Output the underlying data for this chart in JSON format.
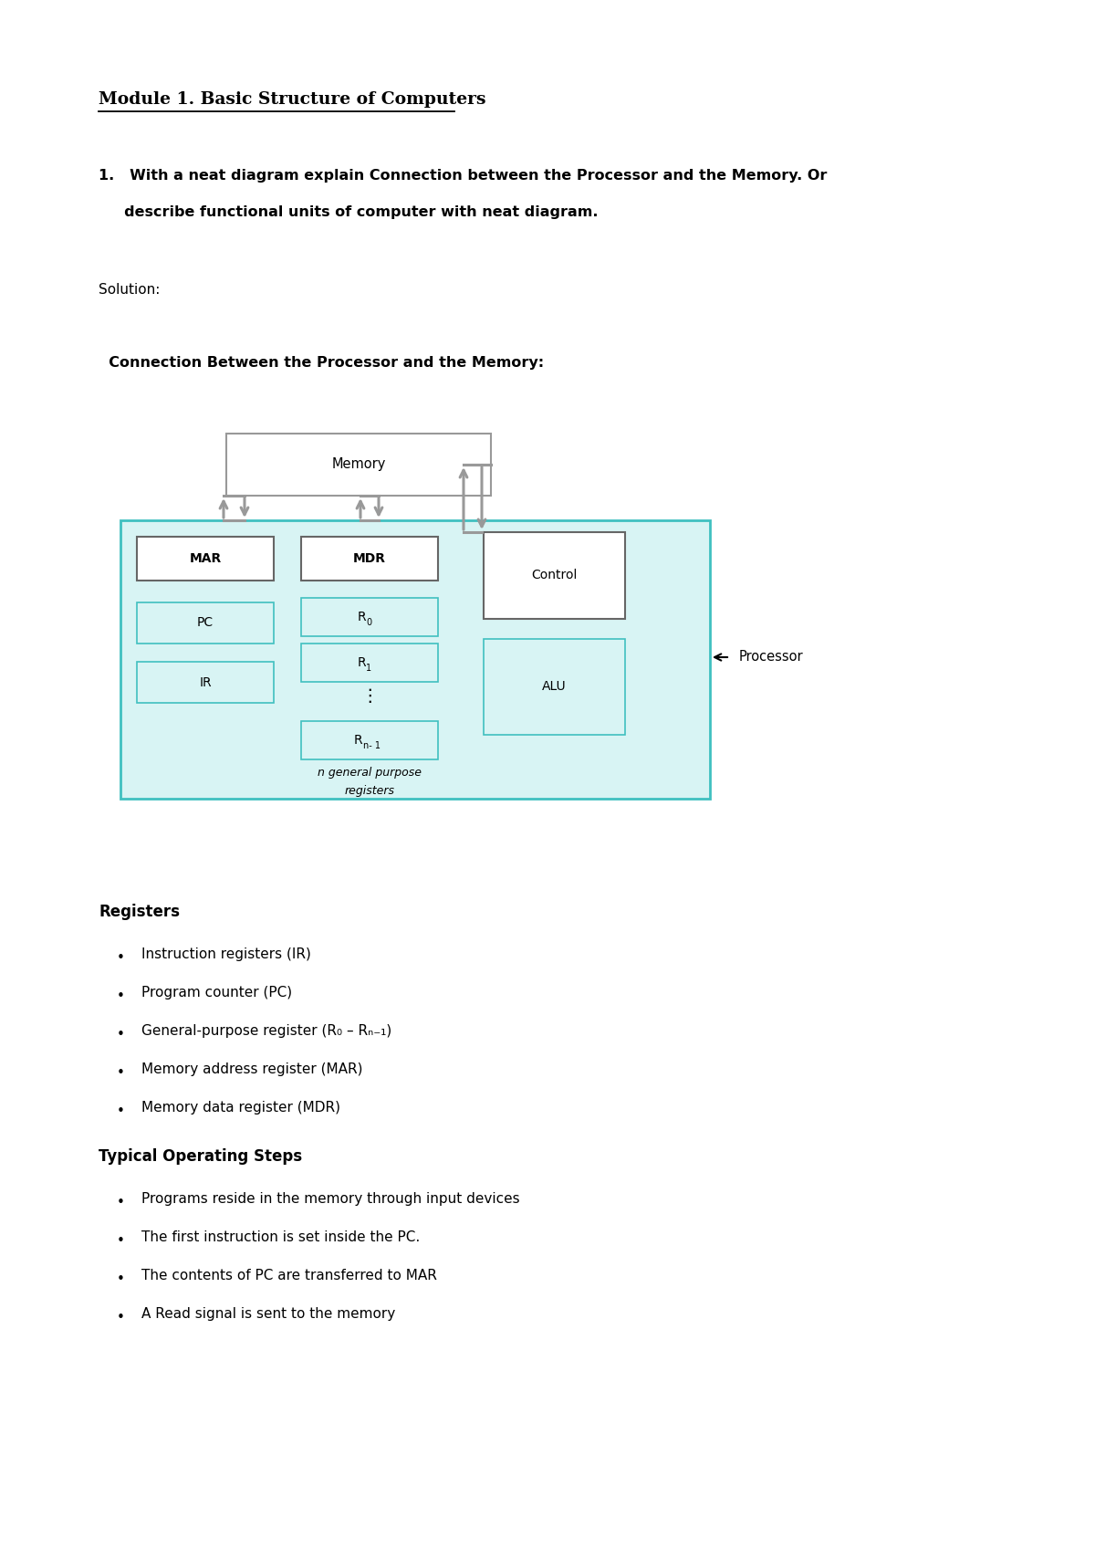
{
  "title": "Module 1. Basic Structure of Computers ",
  "q_line1": "1.   With a neat diagram explain Connection between the Processor and the Memory. Or",
  "q_line2": "     describe functional units of computer with neat diagram.",
  "solution_label": "Solution:",
  "diagram_title": "  Connection Between the Processor and the Memory:",
  "registers_title": "Registers",
  "registers_items": [
    "Instruction registers (IR)",
    "Program counter (PC)",
    "General-purpose register (R₀ – Rₙ₋₁)",
    "Memory address register (MAR)",
    "Memory data register (MDR)"
  ],
  "typical_title": "Typical Operating Steps",
  "typical_items": [
    "Programs reside in the memory through input devices",
    "The first instruction is set inside the PC.",
    "The contents of PC are transferred to MAR",
    "A Read signal is sent to the memory"
  ],
  "bg_color": "#ffffff",
  "processor_box_color": "#d8f4f4",
  "processor_box_edge": "#40c0c0",
  "memory_box_color": "#ffffff",
  "memory_box_edge": "#999999",
  "inner_box_color": "#d8f4f4",
  "inner_box_edge": "#40c0c0",
  "white_box_color": "#ffffff",
  "white_box_edge": "#666666",
  "arrow_color": "#999999",
  "text_color": "#000000"
}
